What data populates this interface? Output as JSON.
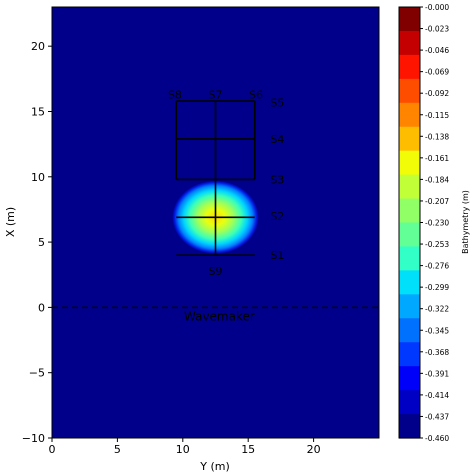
{
  "chart_data": {
    "type": "heatmap",
    "title": "",
    "xlabel": "Y (m)",
    "ylabel": "X (m)",
    "xlim": [
      0,
      25
    ],
    "ylim": [
      -10,
      23
    ],
    "x_ticks": [
      0,
      5,
      10,
      15,
      20
    ],
    "y_ticks": [
      -10,
      -5,
      0,
      5,
      10,
      15,
      20
    ],
    "background_value": -0.46,
    "shoal": {
      "center": [
        12.5,
        6.9
      ],
      "semi_axes": [
        3.3,
        2.8
      ],
      "peak_value": -0.16,
      "edge_value": -0.46
    },
    "wavemaker": {
      "x": 0,
      "label": "Wavemaker"
    },
    "gauge_lines": [
      {
        "from": [
          9.5,
          4.0
        ],
        "to": [
          15.5,
          4.0
        ]
      },
      {
        "from": [
          9.5,
          6.9
        ],
        "to": [
          15.5,
          6.9
        ]
      },
      {
        "from": [
          9.5,
          9.8
        ],
        "to": [
          15.5,
          9.8
        ]
      },
      {
        "from": [
          9.5,
          12.9
        ],
        "to": [
          15.5,
          12.9
        ]
      },
      {
        "from": [
          9.5,
          15.8
        ],
        "to": [
          15.5,
          15.8
        ]
      },
      {
        "from": [
          12.5,
          4.0
        ],
        "to": [
          12.5,
          15.8
        ]
      },
      {
        "from": [
          9.5,
          9.8
        ],
        "to": [
          9.5,
          15.8
        ]
      },
      {
        "from": [
          15.5,
          9.8
        ],
        "to": [
          15.5,
          15.8
        ]
      }
    ],
    "section_labels": [
      {
        "text": "S1",
        "x": 16.7,
        "y": 4.0,
        "anchor": "start"
      },
      {
        "text": "S2",
        "x": 16.7,
        "y": 7.0,
        "anchor": "start"
      },
      {
        "text": "S3",
        "x": 16.7,
        "y": 9.8,
        "anchor": "start"
      },
      {
        "text": "S4",
        "x": 16.7,
        "y": 12.9,
        "anchor": "start"
      },
      {
        "text": "S5",
        "x": 16.7,
        "y": 15.7,
        "anchor": "start"
      },
      {
        "text": "S6",
        "x": 15.6,
        "y": 16.3,
        "anchor": "middle"
      },
      {
        "text": "S7",
        "x": 12.5,
        "y": 16.3,
        "anchor": "middle"
      },
      {
        "text": "S8",
        "x": 9.4,
        "y": 16.3,
        "anchor": "middle"
      },
      {
        "text": "S9",
        "x": 12.5,
        "y": 2.8,
        "anchor": "middle"
      }
    ],
    "colorbar": {
      "label": "Bathymetry (m)",
      "ticks": [
        "-0.000",
        "-0.023",
        "-0.046",
        "-0.069",
        "-0.092",
        "-0.115",
        "-0.138",
        "-0.161",
        "-0.184",
        "-0.207",
        "-0.230",
        "-0.253",
        "-0.276",
        "-0.299",
        "-0.322",
        "-0.345",
        "-0.368",
        "-0.391",
        "-0.414",
        "-0.437",
        "-0.460"
      ],
      "colors": [
        "#800000",
        "#c40000",
        "#ff1400",
        "#ff4d00",
        "#ff8500",
        "#ffbd00",
        "#f1fc06",
        "#c1ff36",
        "#91ff66",
        "#61ff96",
        "#31ffc7",
        "#00e0fb",
        "#00a8ff",
        "#0070ff",
        "#0038ff",
        "#0000fa",
        "#0000c4",
        "#00008b"
      ]
    }
  }
}
